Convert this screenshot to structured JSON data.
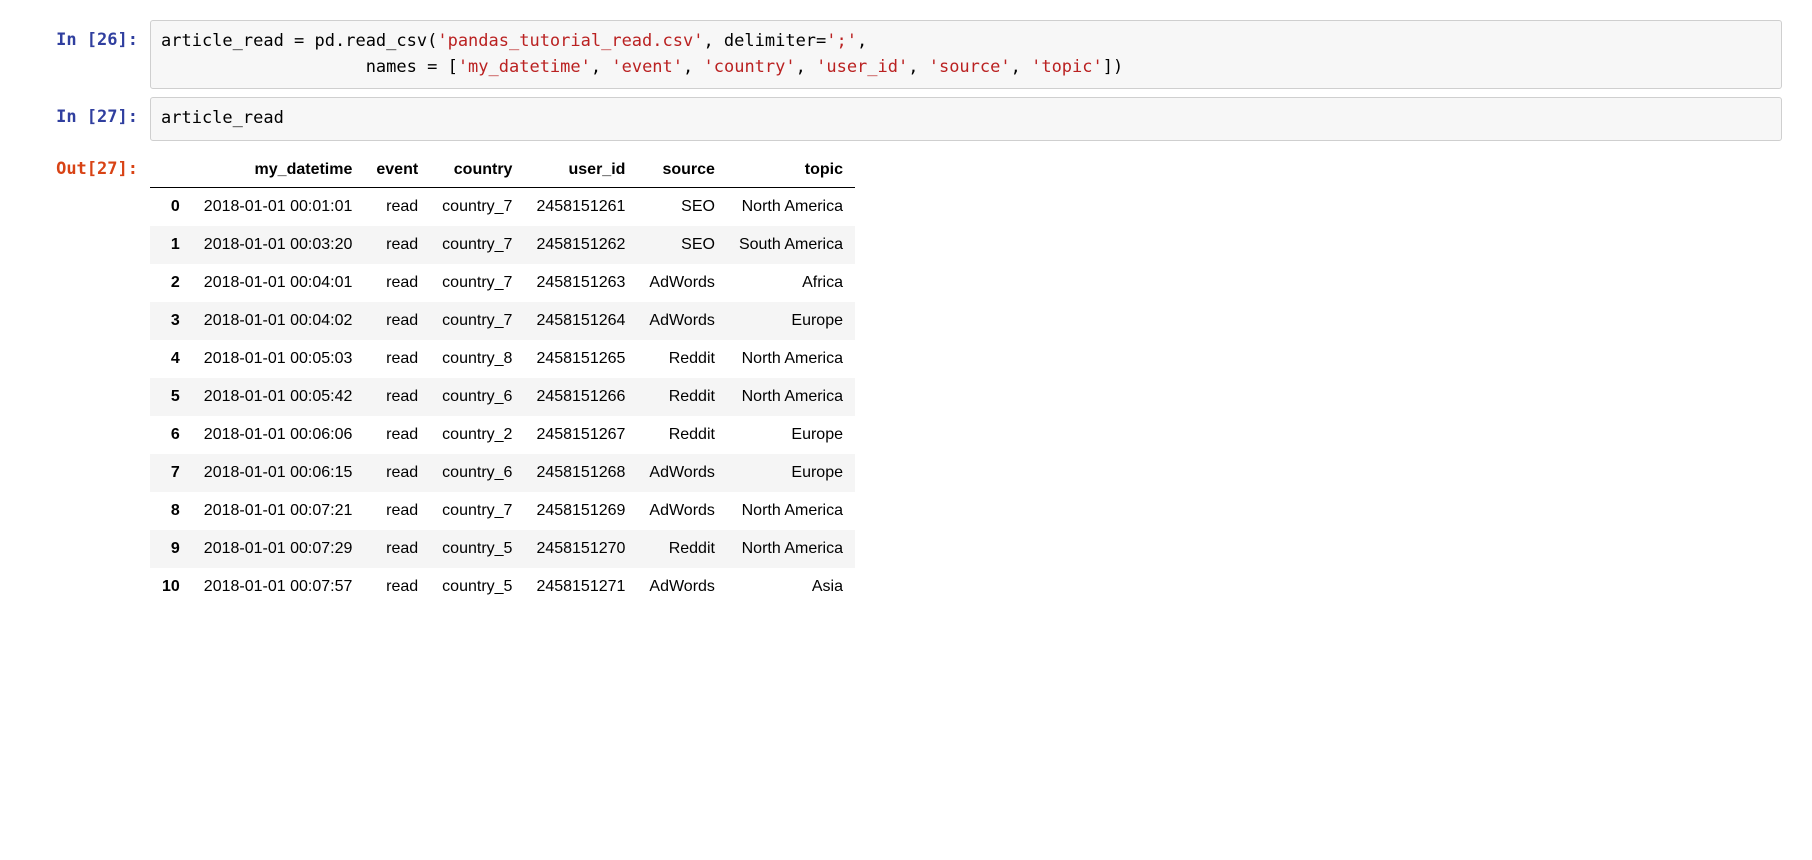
{
  "cells": {
    "in26": {
      "prompt_prefix": "In [",
      "prompt_num": "26",
      "prompt_suffix": "]:",
      "code_parts": [
        {
          "t": "plain",
          "v": "article_read = pd.read_csv("
        },
        {
          "t": "str",
          "v": "'pandas_tutorial_read.csv'"
        },
        {
          "t": "plain",
          "v": ", delimiter="
        },
        {
          "t": "str",
          "v": "';'"
        },
        {
          "t": "plain",
          "v": ",\n                    names = ["
        },
        {
          "t": "str",
          "v": "'my_datetime'"
        },
        {
          "t": "plain",
          "v": ", "
        },
        {
          "t": "str",
          "v": "'event'"
        },
        {
          "t": "plain",
          "v": ", "
        },
        {
          "t": "str",
          "v": "'country'"
        },
        {
          "t": "plain",
          "v": ", "
        },
        {
          "t": "str",
          "v": "'user_id'"
        },
        {
          "t": "plain",
          "v": ", "
        },
        {
          "t": "str",
          "v": "'source'"
        },
        {
          "t": "plain",
          "v": ", "
        },
        {
          "t": "str",
          "v": "'topic'"
        },
        {
          "t": "plain",
          "v": "])"
        }
      ]
    },
    "in27": {
      "prompt_prefix": "In [",
      "prompt_num": "27",
      "prompt_suffix": "]:",
      "code_parts": [
        {
          "t": "plain",
          "v": "article_read"
        }
      ]
    },
    "out27": {
      "prompt_prefix": "Out[",
      "prompt_num": "27",
      "prompt_suffix": "]:"
    }
  },
  "table": {
    "columns": [
      "my_datetime",
      "event",
      "country",
      "user_id",
      "source",
      "topic"
    ],
    "index": [
      "0",
      "1",
      "2",
      "3",
      "4",
      "5",
      "6",
      "7",
      "8",
      "9",
      "10"
    ],
    "rows": [
      [
        "2018-01-01 00:01:01",
        "read",
        "country_7",
        "2458151261",
        "SEO",
        "North America"
      ],
      [
        "2018-01-01 00:03:20",
        "read",
        "country_7",
        "2458151262",
        "SEO",
        "South America"
      ],
      [
        "2018-01-01 00:04:01",
        "read",
        "country_7",
        "2458151263",
        "AdWords",
        "Africa"
      ],
      [
        "2018-01-01 00:04:02",
        "read",
        "country_7",
        "2458151264",
        "AdWords",
        "Europe"
      ],
      [
        "2018-01-01 00:05:03",
        "read",
        "country_8",
        "2458151265",
        "Reddit",
        "North America"
      ],
      [
        "2018-01-01 00:05:42",
        "read",
        "country_6",
        "2458151266",
        "Reddit",
        "North America"
      ],
      [
        "2018-01-01 00:06:06",
        "read",
        "country_2",
        "2458151267",
        "Reddit",
        "Europe"
      ],
      [
        "2018-01-01 00:06:15",
        "read",
        "country_6",
        "2458151268",
        "AdWords",
        "Europe"
      ],
      [
        "2018-01-01 00:07:21",
        "read",
        "country_7",
        "2458151269",
        "AdWords",
        "North America"
      ],
      [
        "2018-01-01 00:07:29",
        "read",
        "country_5",
        "2458151270",
        "Reddit",
        "North America"
      ],
      [
        "2018-01-01 00:07:57",
        "read",
        "country_5",
        "2458151271",
        "AdWords",
        "Asia"
      ]
    ]
  }
}
